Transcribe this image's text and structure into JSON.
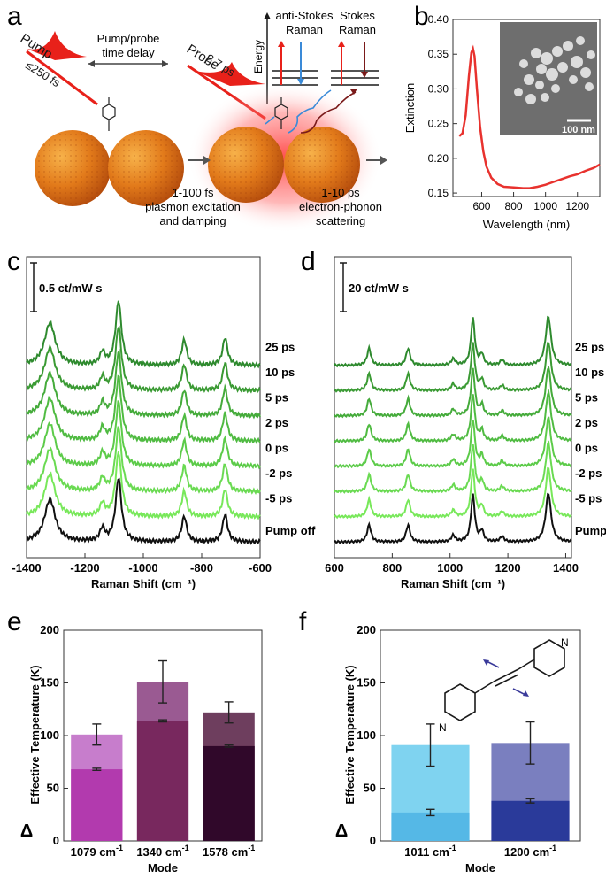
{
  "panels": {
    "a": {
      "label": "a",
      "pump_title": "Pump",
      "pump_duration": "≤250 fs",
      "delay_line1": "Pump/probe",
      "delay_line2": "time delay",
      "probe_title": "Probe",
      "probe_duration": "2.7 ps",
      "energy_label": "Energy",
      "antistokes_line1": "anti-Stokes",
      "antistokes_line2": "Raman",
      "stokes_line1": "Stokes",
      "stokes_line2": "Raman",
      "step1_line1": "1-100 fs",
      "step1_line2": "plasmon excitation",
      "step1_line3": "and damping",
      "step2_line1": "1-10 ps",
      "step2_line2": "electron-phonon",
      "step2_line3": "scattering"
    },
    "b": {
      "label": "b",
      "scale_bar": "100 nm"
    },
    "c": {
      "label": "c",
      "scale_label": "0.5 ct/mW s"
    },
    "d": {
      "label": "d",
      "scale_label": "20 ct/mW s"
    },
    "e": {
      "label": "e",
      "delta_symbol": "Δ"
    },
    "f": {
      "label": "f",
      "delta_symbol": "Δ"
    }
  },
  "chart_data": [
    {
      "id": "b",
      "type": "line",
      "xlabel": "Wavelength (nm)",
      "ylabel": "Extinction",
      "xlim": [
        420,
        1340
      ],
      "ylim": [
        0.145,
        0.4
      ],
      "xticks": [
        600,
        800,
        1000,
        1200
      ],
      "yticks": [
        0.15,
        0.2,
        0.25,
        0.3,
        0.35,
        0.4
      ],
      "series": [
        {
          "name": "extinction",
          "color": "#e8322e",
          "x": [
            460,
            480,
            500,
            520,
            535,
            545,
            555,
            570,
            590,
            610,
            630,
            660,
            700,
            740,
            800,
            860,
            900,
            950,
            1000,
            1050,
            1100,
            1150,
            1200,
            1250,
            1300,
            1340
          ],
          "y": [
            0.232,
            0.236,
            0.262,
            0.318,
            0.352,
            0.358,
            0.347,
            0.3,
            0.245,
            0.21,
            0.188,
            0.172,
            0.163,
            0.159,
            0.158,
            0.157,
            0.157,
            0.159,
            0.162,
            0.166,
            0.17,
            0.174,
            0.177,
            0.182,
            0.186,
            0.191
          ]
        }
      ]
    },
    {
      "id": "c",
      "type": "line",
      "xlabel": "Raman Shift (cm⁻¹)",
      "xlim": [
        -1400,
        -600
      ],
      "xticks": [
        -1400,
        -1200,
        -1000,
        -800,
        -600
      ],
      "trace_labels": [
        "25 ps",
        "10 ps",
        "5 ps",
        "2 ps",
        "0 ps",
        "-2 ps",
        "-5 ps",
        "Pump off"
      ],
      "trace_colors": [
        "#2e8a2e",
        "#3a9a33",
        "#45ab3b",
        "#50bb42",
        "#5ccb49",
        "#6ada52",
        "#78e85a",
        "#111111"
      ],
      "peaks": [
        {
          "center": -1320,
          "width": 22,
          "amplitude": 1.0
        },
        {
          "center": -1085,
          "width": 12,
          "amplitude": 1.5
        },
        {
          "center": -1140,
          "width": 10,
          "amplitude": 0.3
        },
        {
          "center": -860,
          "width": 10,
          "amplitude": 0.6
        },
        {
          "center": -720,
          "width": 10,
          "amplitude": 0.65
        }
      ]
    },
    {
      "id": "d",
      "type": "line",
      "xlabel": "Raman Shift (cm⁻¹)",
      "xlim": [
        600,
        1420
      ],
      "xticks": [
        600,
        800,
        1000,
        1200,
        1400
      ],
      "trace_labels": [
        "25 ps",
        "10 ps",
        "5 ps",
        "2 ps",
        "0 ps",
        "-2 ps",
        "-5 ps",
        "Pump off"
      ],
      "trace_colors": [
        "#2e8a2e",
        "#3a9a33",
        "#45ab3b",
        "#50bb42",
        "#5ccb49",
        "#6ada52",
        "#78e85a",
        "#111111"
      ],
      "peaks": [
        {
          "center": 720,
          "width": 8,
          "amplitude": 0.4
        },
        {
          "center": 855,
          "width": 8,
          "amplitude": 0.4
        },
        {
          "center": 1011,
          "width": 8,
          "amplitude": 0.15
        },
        {
          "center": 1079,
          "width": 8,
          "amplitude": 1.1
        },
        {
          "center": 1110,
          "width": 7,
          "amplitude": 0.25
        },
        {
          "center": 1180,
          "width": 8,
          "amplitude": 0.12
        },
        {
          "center": 1340,
          "width": 11,
          "amplitude": 1.15
        }
      ]
    },
    {
      "id": "e",
      "type": "bar",
      "xlabel": "Mode",
      "ylabel": "Effective Temperature (K)",
      "ylim": [
        0,
        200
      ],
      "yticks": [
        0,
        50,
        100,
        150,
        200
      ],
      "categories": [
        "1079 cm",
        "1340 cm",
        "1578 cm"
      ],
      "category_superscript": "-1",
      "series": [
        {
          "name": "upper",
          "values": [
            101,
            151,
            122
          ],
          "errors": [
            10,
            20,
            10
          ],
          "colors": [
            "#c77dcc",
            "#9a5a92",
            "#6e3e5e"
          ]
        },
        {
          "name": "lower",
          "values": [
            68,
            114,
            90
          ],
          "errors": [
            1,
            1,
            1
          ],
          "colors": [
            "#b23aae",
            "#78285e",
            "#30082a"
          ]
        }
      ]
    },
    {
      "id": "f",
      "type": "bar",
      "xlabel": "Mode",
      "ylabel": "Effective Temperature (K)",
      "ylim": [
        0,
        200
      ],
      "yticks": [
        0,
        50,
        100,
        150,
        200
      ],
      "categories": [
        "1011 cm",
        "1200 cm"
      ],
      "category_superscript": "-1",
      "series": [
        {
          "name": "upper",
          "values": [
            91,
            93
          ],
          "errors": [
            20,
            20
          ],
          "colors": [
            "#7fd3f0",
            "#7a7fbf"
          ]
        },
        {
          "name": "lower",
          "values": [
            27,
            38
          ],
          "errors": [
            3,
            2
          ],
          "colors": [
            "#55b8e6",
            "#2a3a9a"
          ]
        }
      ]
    }
  ]
}
